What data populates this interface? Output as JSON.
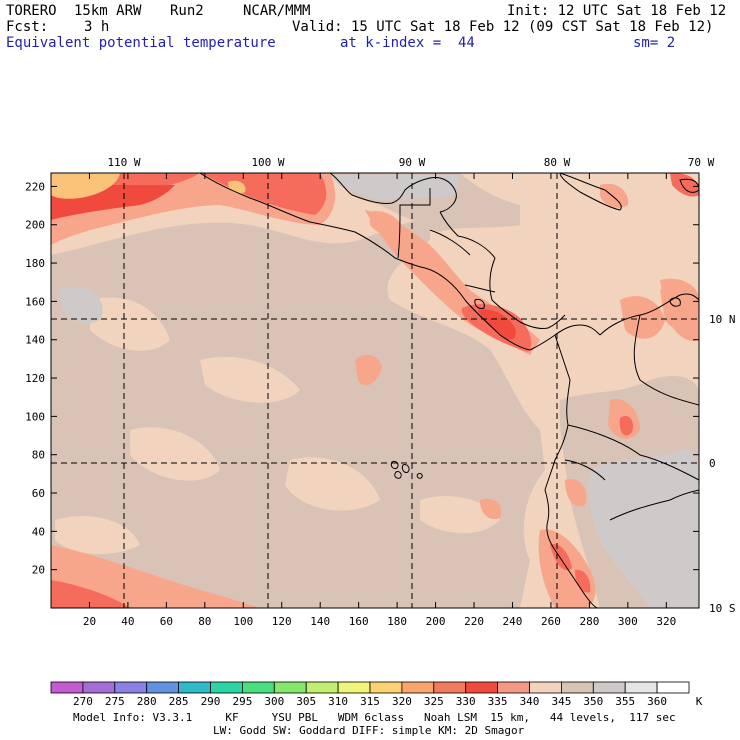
{
  "header": {
    "model": "TORERO",
    "resolution": "15km ARW",
    "run": "Run2",
    "org": "NCAR/MMM",
    "init": "Init: 12 UTC Sat 18 Feb 12",
    "fcst_label": "Fcst:",
    "fcst_value": "3 h",
    "valid": "Valid: 15 UTC Sat 18 Feb 12 (09 CST Sat 18 Feb 12)",
    "field": "Equivalent potential temperature",
    "level": "at k-index =  44",
    "smoothing": "sm= 2"
  },
  "map": {
    "lon_labels": [
      "110 W",
      "100 W",
      "90 W",
      "80 W",
      "70 W"
    ],
    "lat_labels": [
      "10 N",
      "0",
      "10 S"
    ],
    "y_ticks": [
      "20",
      "40",
      "60",
      "80",
      "100",
      "120",
      "140",
      "160",
      "180",
      "200",
      "220"
    ],
    "x_ticks": [
      "20",
      "40",
      "60",
      "80",
      "100",
      "120",
      "140",
      "160",
      "180",
      "200",
      "220",
      "240",
      "260",
      "280",
      "300",
      "320"
    ],
    "colors": {
      "background": "#f2d3bd",
      "band_345": "#d9c3b6",
      "band_350": "#cfcaca",
      "band_335": "#f7a58b",
      "band_330": "#f56b5c",
      "band_325": "#ef4a3d",
      "band_320": "#fbc27a"
    }
  },
  "colorbar": {
    "unit": "K",
    "labels": [
      "270",
      "275",
      "280",
      "285",
      "290",
      "295",
      "300",
      "305",
      "310",
      "315",
      "320",
      "325",
      "330",
      "335",
      "340",
      "345",
      "350",
      "355",
      "360"
    ],
    "colors": [
      "#c35bd1",
      "#a36fd6",
      "#8a80e6",
      "#5f92e0",
      "#2fb9c9",
      "#2dd4a5",
      "#48e07e",
      "#84e86a",
      "#c2ee6f",
      "#eff47b",
      "#fbd271",
      "#f9a66d",
      "#f2785f",
      "#ef4a3d",
      "#f59a82",
      "#f2d3bd",
      "#d9c3b6",
      "#cfcaca",
      "#e6e6e6",
      "#ffffff"
    ]
  },
  "footer": {
    "line1": "Model Info: V3.3.1     KF     YSU PBL   WDM 6class   Noah LSM  15 km,   44 levels,  117 sec",
    "line2": "LW: Godd SW: Goddard DIFF: simple KM: 2D Smagor"
  }
}
